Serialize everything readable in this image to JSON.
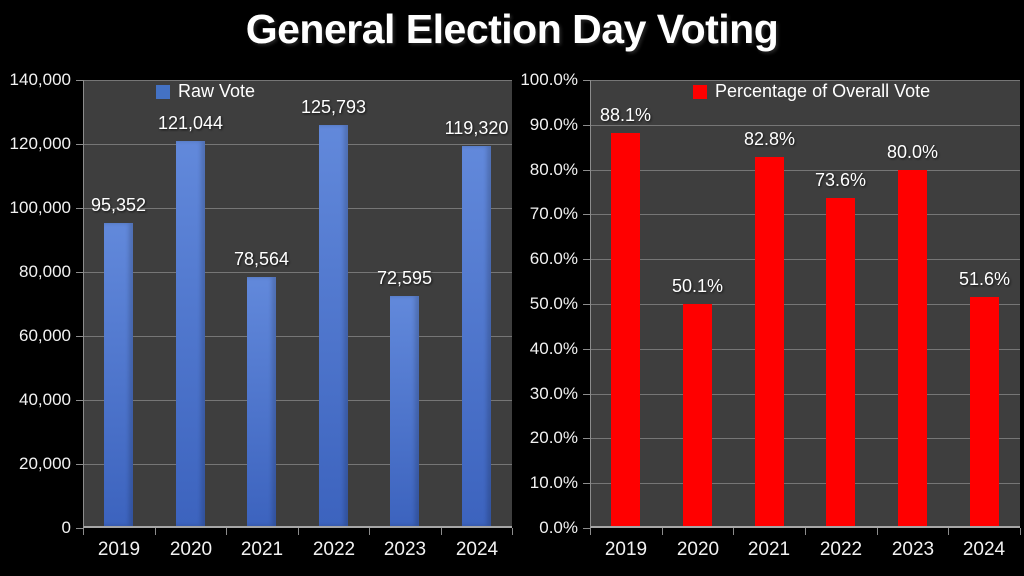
{
  "page": {
    "title": "General Election Day Voting"
  },
  "colors": {
    "background": "#000000",
    "plot_background": "#3E3E3E",
    "gridline": "#767676",
    "axis_line": "#A6A6A6",
    "text": "#FFFFFF",
    "raw_vote_bar": "#4472C4",
    "raw_vote_bar_gradient_top": "#6289DB",
    "raw_vote_bar_gradient_bottom": "#3C63BE",
    "percentage_bar": "#FF0000"
  },
  "chart_data": [
    {
      "type": "bar",
      "legend": "Raw Vote",
      "legend_position": "top-inside",
      "grid": true,
      "categories": [
        "2019",
        "2020",
        "2021",
        "2022",
        "2023",
        "2024"
      ],
      "values": [
        95352,
        121044,
        78564,
        125793,
        72595,
        119320
      ],
      "value_labels": [
        "95,352",
        "121,044",
        "78,564",
        "125,793",
        "72,595",
        "119,320"
      ],
      "ylim": [
        0,
        140000
      ],
      "ytick_step": 20000,
      "ytick_labels": [
        "140,000",
        "120,000",
        "100,000",
        "80,000",
        "60,000",
        "40,000",
        "20,000",
        "0"
      ],
      "bar_color": "#4472C4",
      "bar_gradient": [
        "#6289DB",
        "#3C63BE"
      ]
    },
    {
      "type": "bar",
      "legend": "Percentage of Overall Vote",
      "legend_position": "top-inside",
      "grid": true,
      "categories": [
        "2019",
        "2020",
        "2021",
        "2022",
        "2023",
        "2024"
      ],
      "values": [
        88.1,
        50.1,
        82.8,
        73.6,
        80.0,
        51.6
      ],
      "value_labels": [
        "88.1%",
        "50.1%",
        "82.8%",
        "73.6%",
        "80.0%",
        "51.6%"
      ],
      "ylim": [
        0,
        100
      ],
      "ytick_step": 10,
      "ytick_labels": [
        "100.0%",
        "90.0%",
        "80.0%",
        "70.0%",
        "60.0%",
        "50.0%",
        "40.0%",
        "30.0%",
        "20.0%",
        "10.0%",
        "0.0%"
      ],
      "bar_color": "#FF0000",
      "bar_gradient": null
    }
  ]
}
